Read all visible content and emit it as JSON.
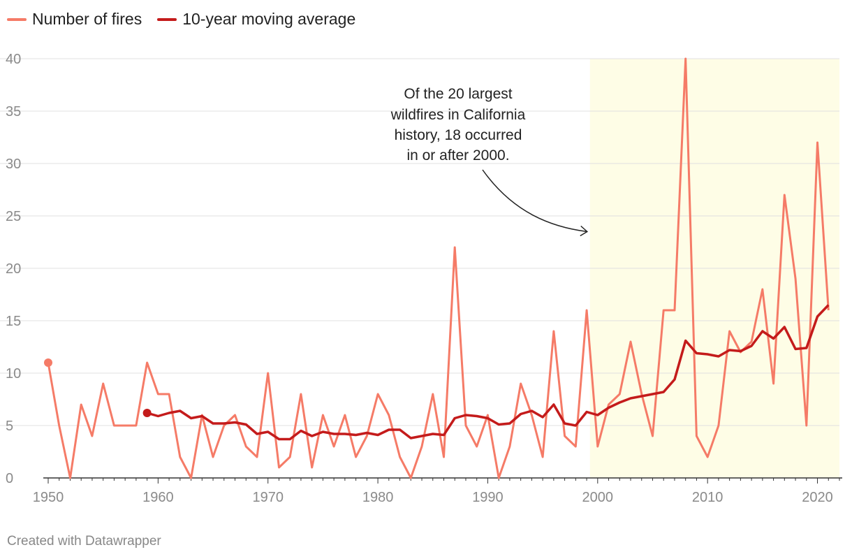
{
  "legend": {
    "fires_label": "Number of fires",
    "avg_label": "10-year moving average"
  },
  "colors": {
    "fires": "#f57b67",
    "average": "#c41b1b",
    "highlight": "#fefde6",
    "grid": "#e0e0e0",
    "axis": "#333333",
    "annotation": "#222222"
  },
  "annotation": {
    "lines": [
      "Of the 20 largest",
      "wildfires in California",
      "history, 18 occurred",
      "in or after 2000."
    ]
  },
  "credit": "Created with Datawrapper",
  "chart_data": {
    "type": "line",
    "title": "",
    "xlabel": "",
    "ylabel": "",
    "xlim": [
      1950,
      2022
    ],
    "ylim": [
      0,
      40
    ],
    "y_ticks": [
      0,
      5,
      10,
      15,
      20,
      25,
      30,
      35,
      40
    ],
    "x_ticks": [
      1950,
      1960,
      1970,
      1980,
      1990,
      2000,
      2010,
      2020
    ],
    "highlight_range": [
      1999.3,
      2022
    ],
    "annotation_arrow_target": [
      1999.3,
      23.5
    ],
    "series": [
      {
        "name": "Number of fires",
        "x": [
          1950,
          1951,
          1952,
          1953,
          1954,
          1955,
          1956,
          1957,
          1958,
          1959,
          1960,
          1961,
          1962,
          1963,
          1964,
          1965,
          1966,
          1967,
          1968,
          1969,
          1970,
          1971,
          1972,
          1973,
          1974,
          1975,
          1976,
          1977,
          1978,
          1979,
          1980,
          1981,
          1982,
          1983,
          1984,
          1985,
          1986,
          1987,
          1988,
          1989,
          1990,
          1991,
          1992,
          1993,
          1994,
          1995,
          1996,
          1997,
          1998,
          1999,
          2000,
          2001,
          2002,
          2003,
          2004,
          2005,
          2006,
          2007,
          2008,
          2009,
          2010,
          2011,
          2012,
          2013,
          2014,
          2015,
          2016,
          2017,
          2018,
          2019,
          2020,
          2021
        ],
        "values": [
          11,
          5,
          0,
          7,
          4,
          9,
          5,
          5,
          5,
          11,
          8,
          8,
          2,
          0,
          6,
          2,
          5,
          6,
          3,
          2,
          10,
          1,
          2,
          8,
          1,
          6,
          3,
          6,
          2,
          4,
          8,
          6,
          2,
          0,
          3,
          8,
          2,
          22,
          5,
          3,
          6,
          0,
          3,
          9,
          6,
          2,
          14,
          4,
          3,
          16,
          3,
          7,
          8,
          13,
          8,
          4,
          16,
          16,
          40,
          4,
          2,
          5,
          14,
          12,
          13,
          18,
          9,
          27,
          19,
          5,
          32,
          16
        ]
      },
      {
        "name": "10-year moving average",
        "x": [
          1959,
          1960,
          1961,
          1962,
          1963,
          1964,
          1965,
          1966,
          1967,
          1968,
          1969,
          1970,
          1971,
          1972,
          1973,
          1974,
          1975,
          1976,
          1977,
          1978,
          1979,
          1980,
          1981,
          1982,
          1983,
          1984,
          1985,
          1986,
          1987,
          1988,
          1989,
          1990,
          1991,
          1992,
          1993,
          1994,
          1995,
          1996,
          1997,
          1998,
          1999,
          2000,
          2001,
          2002,
          2003,
          2004,
          2005,
          2006,
          2007,
          2008,
          2009,
          2010,
          2011,
          2012,
          2013,
          2014,
          2015,
          2016,
          2017,
          2018,
          2019,
          2020,
          2021
        ],
        "values": [
          6.2,
          5.9,
          6.2,
          6.4,
          5.7,
          5.9,
          5.2,
          5.2,
          5.3,
          5.1,
          4.2,
          4.4,
          3.7,
          3.7,
          4.5,
          4.0,
          4.4,
          4.2,
          4.2,
          4.1,
          4.3,
          4.1,
          4.6,
          4.6,
          3.8,
          4.0,
          4.2,
          4.1,
          5.7,
          6.0,
          5.9,
          5.7,
          5.1,
          5.2,
          6.1,
          6.4,
          5.8,
          7.0,
          5.2,
          5.0,
          6.3,
          6.0,
          6.7,
          7.2,
          7.6,
          7.8,
          8.0,
          8.2,
          9.4,
          13.1,
          11.9,
          11.8,
          11.6,
          12.2,
          12.1,
          12.6,
          14.0,
          13.3,
          14.4,
          12.3,
          12.4,
          15.4,
          16.5
        ]
      }
    ]
  }
}
